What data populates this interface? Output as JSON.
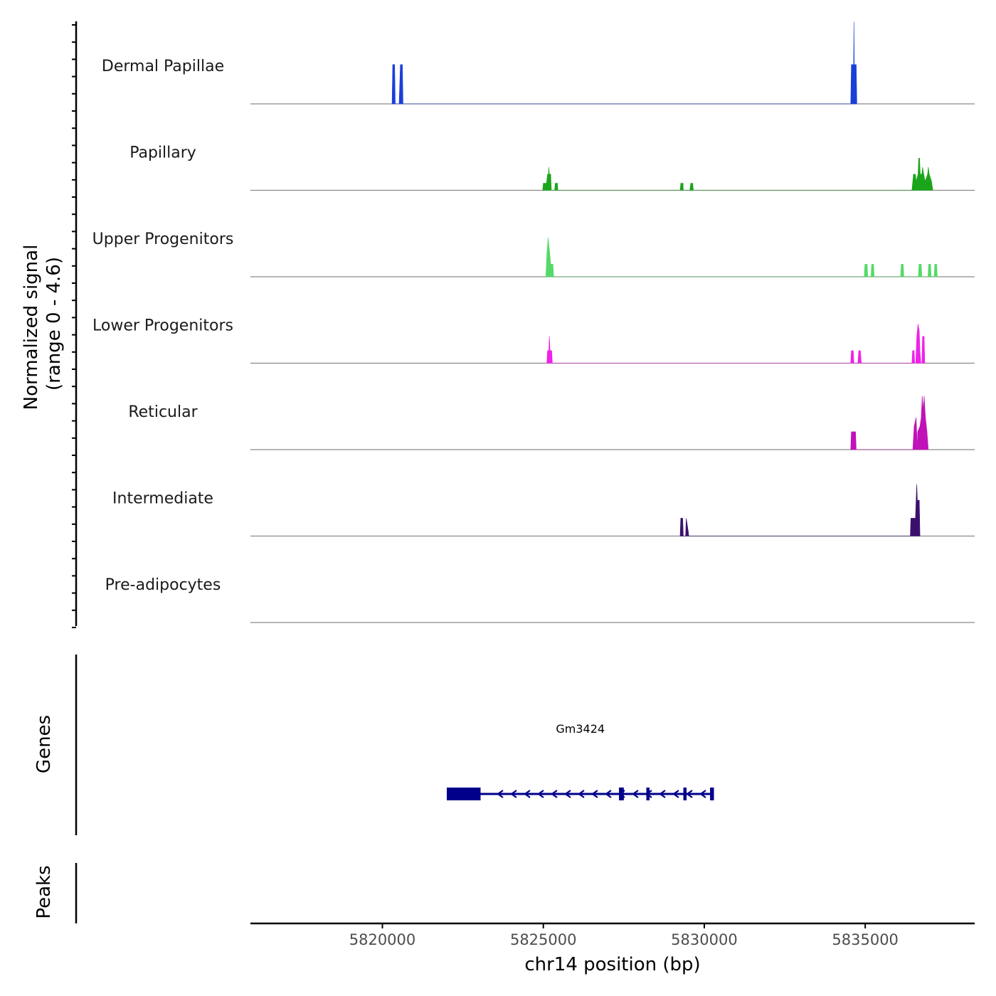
{
  "chart_data": {
    "type": "area",
    "title": "",
    "xlabel": "chr14 position (bp)",
    "ylabel": "Normalized signal",
    "ylabel_range": "(range 0 - 4.6)",
    "signal_range": [
      0,
      4.6
    ],
    "xlim": [
      5815900,
      5838400
    ],
    "x_ticks": [
      5820000,
      5825000,
      5830000,
      5835000
    ],
    "x_tick_labels": [
      "5820000",
      "5825000",
      "5830000",
      "5835000"
    ],
    "tracks": [
      {
        "name": "Dermal Papillae",
        "color": "#1a3fd9",
        "points": [
          [
            5820300,
            0
          ],
          [
            5820320,
            2.2
          ],
          [
            5820380,
            2.2
          ],
          [
            5820400,
            0
          ],
          [
            5820520,
            0
          ],
          [
            5820560,
            2.2
          ],
          [
            5820620,
            2.2
          ],
          [
            5820640,
            0
          ],
          [
            5834550,
            0
          ],
          [
            5834570,
            2.2
          ],
          [
            5834640,
            2.2
          ],
          [
            5834650,
            4.6
          ],
          [
            5834660,
            2.2
          ],
          [
            5834720,
            2.2
          ],
          [
            5834740,
            0
          ]
        ]
      },
      {
        "name": "Papillary",
        "color": "#1aa51a",
        "points": [
          [
            5824980,
            0
          ],
          [
            5825000,
            0.4
          ],
          [
            5825100,
            0.4
          ],
          [
            5825130,
            0.9
          ],
          [
            5825160,
            0.9
          ],
          [
            5825170,
            1.3
          ],
          [
            5825190,
            0.9
          ],
          [
            5825230,
            0.9
          ],
          [
            5825250,
            0
          ],
          [
            5825350,
            0
          ],
          [
            5825370,
            0.4
          ],
          [
            5825440,
            0.4
          ],
          [
            5825450,
            0
          ],
          [
            5829250,
            0
          ],
          [
            5829270,
            0.4
          ],
          [
            5829340,
            0.4
          ],
          [
            5829350,
            0
          ],
          [
            5829550,
            0
          ],
          [
            5829580,
            0.4
          ],
          [
            5829640,
            0.4
          ],
          [
            5829660,
            0
          ],
          [
            5836450,
            0
          ],
          [
            5836500,
            0.9
          ],
          [
            5836560,
            0.9
          ],
          [
            5836580,
            0.5
          ],
          [
            5836640,
            0.9
          ],
          [
            5836660,
            1.8
          ],
          [
            5836690,
            1.8
          ],
          [
            5836710,
            0.9
          ],
          [
            5836760,
            0.9
          ],
          [
            5836780,
            1.3
          ],
          [
            5836820,
            0.9
          ],
          [
            5836860,
            0.5
          ],
          [
            5836940,
            0.9
          ],
          [
            5836960,
            1.3
          ],
          [
            5836990,
            0.9
          ],
          [
            5837060,
            0.5
          ],
          [
            5837100,
            0
          ]
        ]
      },
      {
        "name": "Upper Progenitors",
        "color": "#55d968",
        "points": [
          [
            5825080,
            0
          ],
          [
            5825110,
            1.3
          ],
          [
            5825150,
            2.2
          ],
          [
            5825170,
            1.8
          ],
          [
            5825190,
            1.5
          ],
          [
            5825230,
            0.7
          ],
          [
            5825300,
            0.7
          ],
          [
            5825320,
            0
          ],
          [
            5834970,
            0
          ],
          [
            5834990,
            0.7
          ],
          [
            5835060,
            0.7
          ],
          [
            5835080,
            0
          ],
          [
            5835180,
            0
          ],
          [
            5835200,
            0.7
          ],
          [
            5835260,
            0.7
          ],
          [
            5835280,
            0
          ],
          [
            5836100,
            0
          ],
          [
            5836120,
            0.7
          ],
          [
            5836180,
            0.7
          ],
          [
            5836200,
            0
          ],
          [
            5836650,
            0
          ],
          [
            5836670,
            0.7
          ],
          [
            5836740,
            0.7
          ],
          [
            5836760,
            0
          ],
          [
            5836950,
            0
          ],
          [
            5836970,
            0.7
          ],
          [
            5837030,
            0.7
          ],
          [
            5837050,
            0
          ],
          [
            5837140,
            0
          ],
          [
            5837160,
            0.7
          ],
          [
            5837220,
            0.7
          ],
          [
            5837240,
            0
          ]
        ]
      },
      {
        "name": "Lower Progenitors",
        "color": "#f022e8",
        "points": [
          [
            5825110,
            0
          ],
          [
            5825130,
            0.7
          ],
          [
            5825170,
            0.7
          ],
          [
            5825190,
            1.5
          ],
          [
            5825210,
            0.7
          ],
          [
            5825260,
            0.7
          ],
          [
            5825280,
            0
          ],
          [
            5834550,
            0
          ],
          [
            5834570,
            0.7
          ],
          [
            5834630,
            0.7
          ],
          [
            5834650,
            0
          ],
          [
            5834770,
            0
          ],
          [
            5834800,
            0.7
          ],
          [
            5834850,
            0.7
          ],
          [
            5834880,
            0
          ],
          [
            5836450,
            0
          ],
          [
            5836470,
            0.7
          ],
          [
            5836520,
            0.7
          ],
          [
            5836540,
            0
          ],
          [
            5836570,
            0
          ],
          [
            5836600,
            1.5
          ],
          [
            5836640,
            2.2
          ],
          [
            5836680,
            1.8
          ],
          [
            5836700,
            0.7
          ],
          [
            5836730,
            0
          ],
          [
            5836760,
            0
          ],
          [
            5836780,
            1.5
          ],
          [
            5836830,
            1.5
          ],
          [
            5836850,
            0
          ]
        ]
      },
      {
        "name": "Reticular",
        "color": "#c012b8",
        "points": [
          [
            5834550,
            0
          ],
          [
            5834570,
            1.0
          ],
          [
            5834700,
            1.0
          ],
          [
            5834720,
            0
          ],
          [
            5836480,
            0
          ],
          [
            5836520,
            1.3
          ],
          [
            5836580,
            1.8
          ],
          [
            5836620,
            0
          ],
          [
            5836630,
            1.0
          ],
          [
            5836700,
            1.3
          ],
          [
            5836740,
            1.8
          ],
          [
            5836770,
            3.0
          ],
          [
            5836800,
            2.2
          ],
          [
            5836830,
            3.0
          ],
          [
            5836870,
            1.8
          ],
          [
            5836920,
            1.0
          ],
          [
            5836960,
            0
          ]
        ]
      },
      {
        "name": "Intermediate",
        "color": "#3b0f6e",
        "points": [
          [
            5829250,
            0
          ],
          [
            5829270,
            1.0
          ],
          [
            5829330,
            1.0
          ],
          [
            5829350,
            0
          ],
          [
            5829420,
            0
          ],
          [
            5829440,
            1.0
          ],
          [
            5829500,
            0.3
          ],
          [
            5829520,
            0
          ],
          [
            5836400,
            0
          ],
          [
            5836420,
            1.0
          ],
          [
            5836560,
            1.0
          ],
          [
            5836580,
            2.0
          ],
          [
            5836600,
            2.9
          ],
          [
            5836620,
            2.0
          ],
          [
            5836680,
            2.0
          ],
          [
            5836700,
            0
          ]
        ]
      },
      {
        "name": "Pre-adipocytes",
        "color": "#2c7fb8",
        "points": []
      }
    ],
    "genes_label": "Genes",
    "peaks_label": "Peaks",
    "genes": [
      {
        "name": "Gm3424",
        "color": "#00008b",
        "start": 5822000,
        "end": 5830300,
        "strand": "-",
        "exons": [
          [
            5822000,
            5823050
          ],
          [
            5827350,
            5827500
          ],
          [
            5828200,
            5828300
          ],
          [
            5829350,
            5829450
          ],
          [
            5830180,
            5830300
          ]
        ]
      }
    ]
  }
}
